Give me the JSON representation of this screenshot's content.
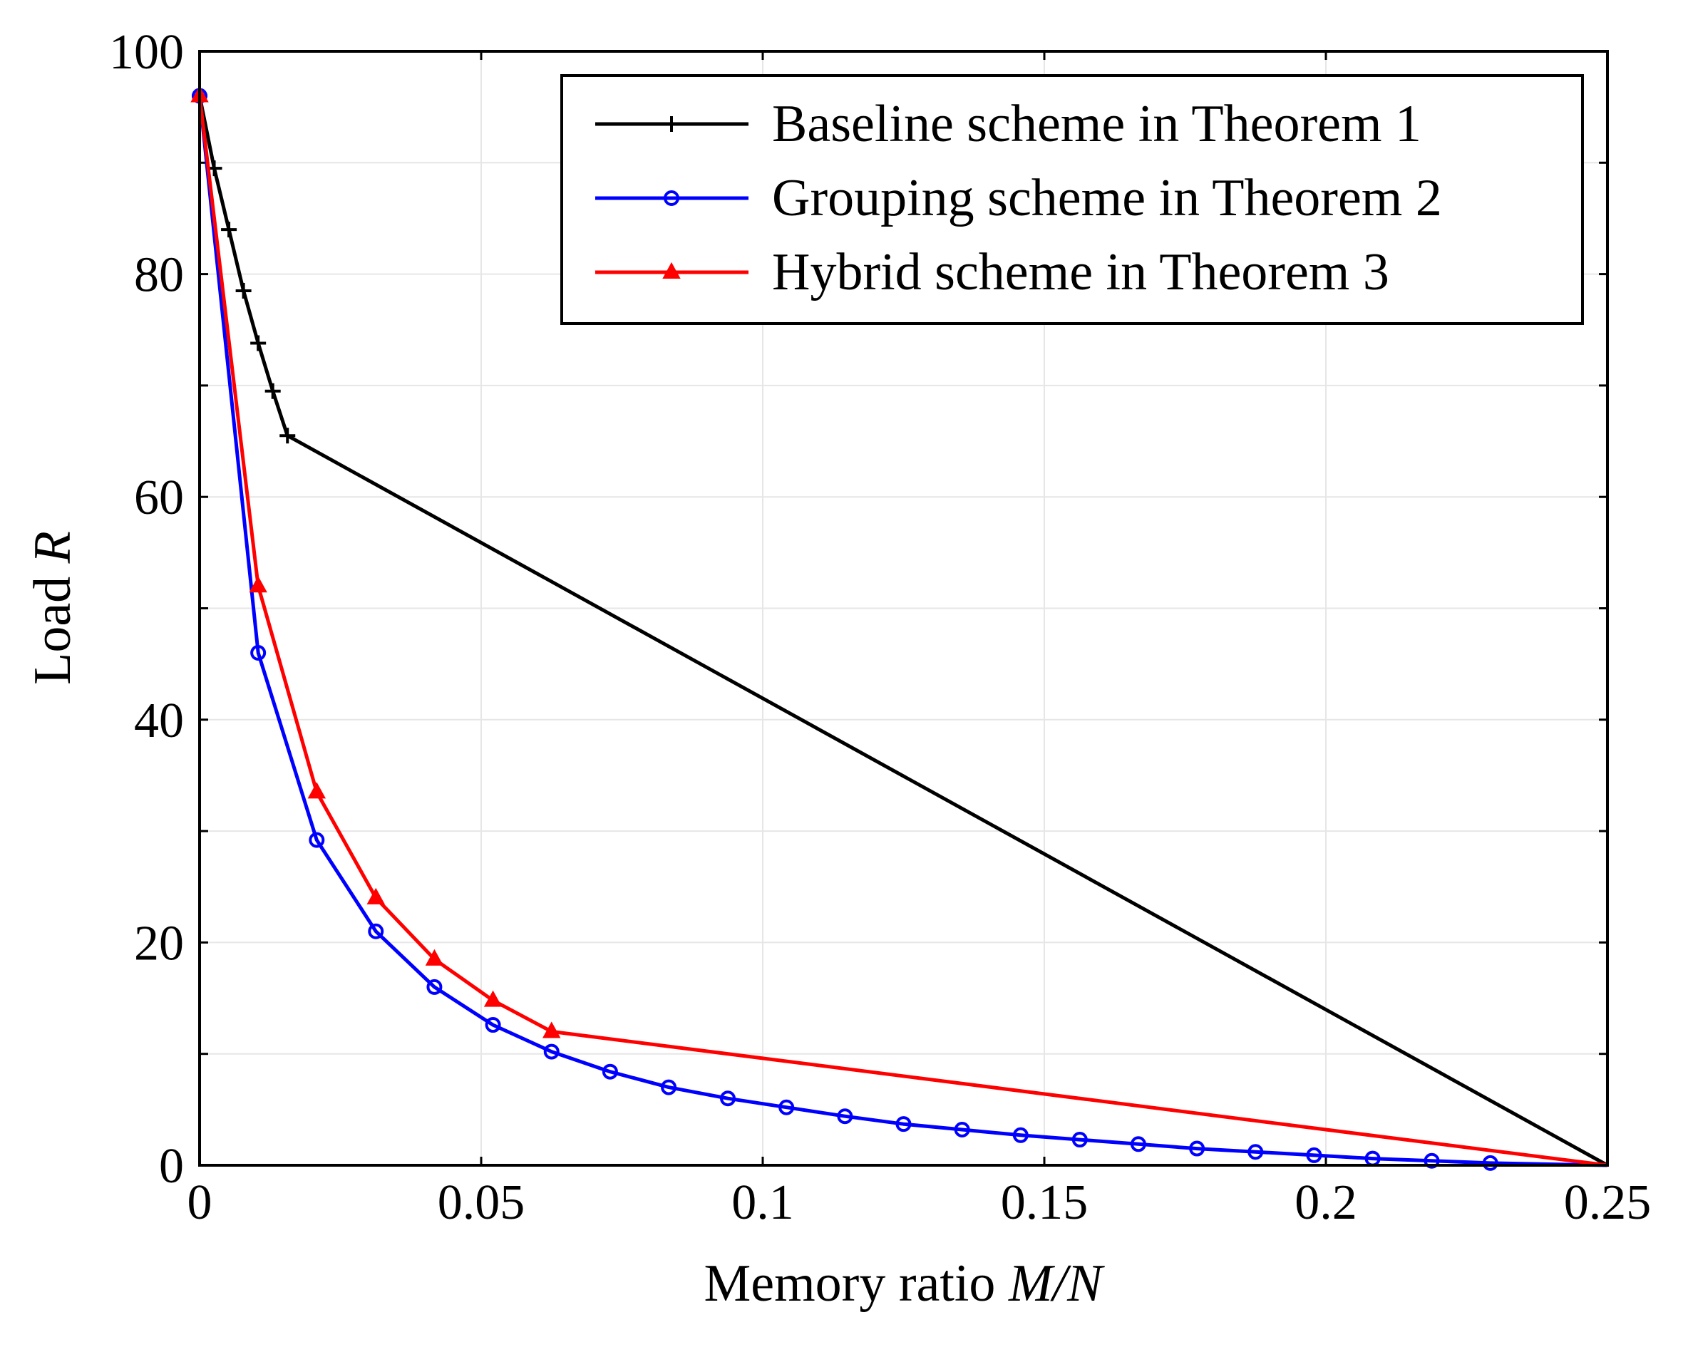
{
  "chart_data": {
    "type": "line",
    "title": "",
    "xlabel": {
      "prefix": "Memory ratio ",
      "italic": "M/N"
    },
    "ylabel": {
      "prefix": "Load ",
      "italic": "R"
    },
    "xlim": [
      0,
      0.25
    ],
    "ylim": [
      0,
      100
    ],
    "xticks": [
      0,
      0.05,
      0.1,
      0.15,
      0.2,
      0.25
    ],
    "xtick_labels": [
      "0",
      "0.05",
      "0.1",
      "0.15",
      "0.2",
      "0.25"
    ],
    "yticks": [
      0,
      20,
      40,
      60,
      80,
      100
    ],
    "ytick_labels": [
      "0",
      "20",
      "40",
      "60",
      "80",
      "100"
    ],
    "grid": true,
    "legend_position": "top-right",
    "series": [
      {
        "name": "Baseline scheme in Theorem 1",
        "color": "#000000",
        "marker": "cross",
        "x": [
          0,
          0.0026,
          0.0052,
          0.0078,
          0.0104,
          0.013,
          0.0156,
          0.25
        ],
        "y": [
          96,
          89.5,
          84,
          78.5,
          73.8,
          69.5,
          65.5,
          0
        ],
        "marker_count": 7
      },
      {
        "name": "Grouping scheme in Theorem 2",
        "color": "#0000ff",
        "marker": "circle",
        "x": [
          0,
          0.0104,
          0.0208,
          0.0313,
          0.0417,
          0.0521,
          0.0625,
          0.0729,
          0.0833,
          0.0938,
          0.1042,
          0.1146,
          0.125,
          0.1354,
          0.1458,
          0.1563,
          0.1667,
          0.1771,
          0.1875,
          0.1979,
          0.2083,
          0.2188,
          0.2292,
          0.25
        ],
        "y": [
          96,
          46,
          29.2,
          21,
          16,
          12.6,
          10.2,
          8.4,
          7,
          6,
          5.2,
          4.4,
          3.7,
          3.2,
          2.7,
          2.3,
          1.9,
          1.5,
          1.2,
          0.9,
          0.6,
          0.4,
          0.2,
          0
        ],
        "marker_count": 23
      },
      {
        "name": "Hybrid scheme in Theorem 3",
        "color": "#ff0000",
        "marker": "triangle",
        "x": [
          0,
          0.0104,
          0.0208,
          0.0313,
          0.0417,
          0.0521,
          0.0625,
          0.25
        ],
        "y": [
          96,
          52,
          33.5,
          24,
          18.5,
          14.8,
          12,
          0
        ],
        "marker_count": 7
      }
    ]
  }
}
